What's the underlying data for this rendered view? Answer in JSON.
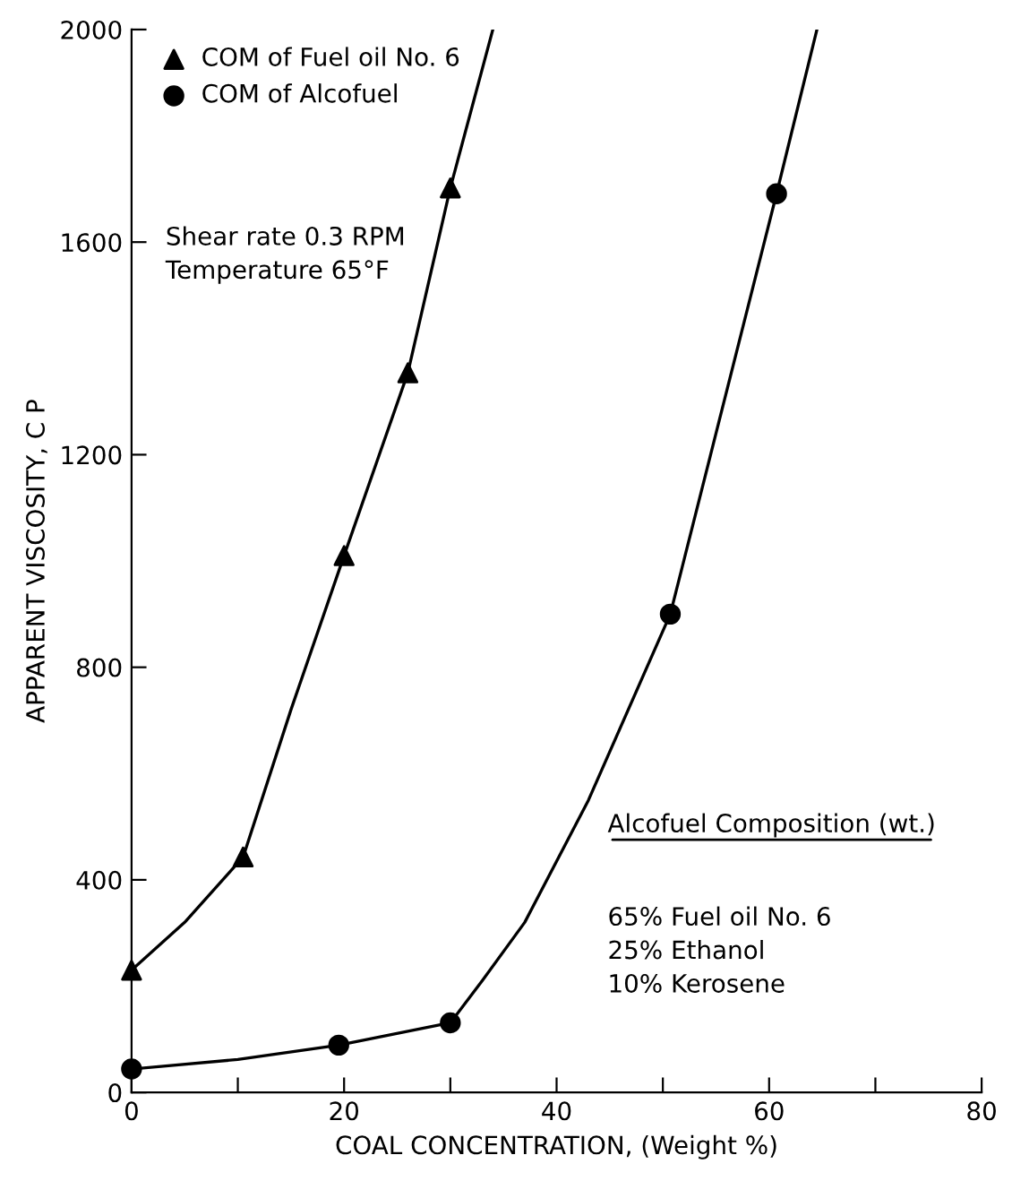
{
  "chart_data": {
    "type": "scatter",
    "xlabel": "COAL CONCENTRATION, (Weight %)",
    "ylabel": "APPARENT VISCOSITY, C P",
    "xlim": [
      0,
      80
    ],
    "ylim": [
      0,
      2000
    ],
    "xticks": [
      0,
      {
        "value": 10,
        "label": null
      },
      20,
      {
        "value": 30,
        "label": null
      },
      40,
      {
        "value": 50,
        "label": null
      },
      60,
      {
        "value": 70,
        "label": null
      },
      80
    ],
    "yticks": [
      0,
      400,
      800,
      1200,
      1600,
      2000
    ],
    "grid": false,
    "legend": "top left",
    "series": [
      {
        "name": "COM of Fuel oil No. 6",
        "color": "#000000",
        "marker": "triangle",
        "x": [
          0,
          10.5,
          20,
          26,
          30
        ],
        "values": [
          230,
          443,
          1010,
          1354,
          1702
        ]
      },
      {
        "name": "COM of Alcofuel",
        "color": "#000000",
        "marker": "circle",
        "x": [
          0,
          19.5,
          30,
          50.7,
          60.7
        ],
        "values": [
          44,
          89,
          131,
          900,
          1691
        ]
      },
      {
        "type": "line",
        "color": "#000000",
        "marker": "none",
        "x": [
          0,
          5,
          10.5,
          15,
          20,
          26,
          30,
          34
        ],
        "values": [
          230,
          320,
          443,
          720,
          1010,
          1354,
          1702,
          2000
        ]
      },
      {
        "type": "line",
        "color": "#000000",
        "marker": "none",
        "x": [
          0,
          10,
          19.5,
          30,
          33,
          37,
          43,
          50.7,
          55,
          60.7,
          64.5
        ],
        "values": [
          44,
          62,
          89,
          131,
          210,
          320,
          550,
          900,
          1240,
          1691,
          2000
        ]
      }
    ],
    "annotations": [
      "Shear rate 0.3 RPM\nTemperature 65°F",
      "Alcofuel Composition (wt.)",
      "65% Fuel oil No. 6\n25% Ethanol\n10% Kerosene"
    ]
  }
}
